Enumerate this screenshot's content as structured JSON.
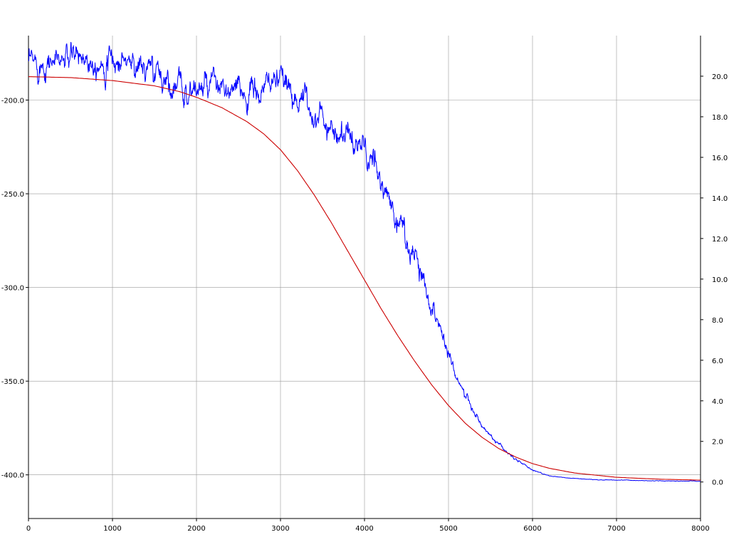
{
  "chart_data": {
    "type": "line",
    "title": "",
    "xlabel": "",
    "ylabel_left": "",
    "ylabel_right": "",
    "grid": true,
    "legend": "none",
    "xlim": [
      0,
      8000
    ],
    "ylim_left": [
      -423.3,
      -165.6
    ],
    "ylim_right": [
      -1.8,
      22.0
    ],
    "x_ticks": [
      0,
      1000,
      2000,
      3000,
      4000,
      5000,
      6000,
      7000,
      8000
    ],
    "x_tick_labels": [
      "0",
      "1000",
      "2000",
      "3000",
      "4000",
      "5000",
      "6000",
      "7000",
      "8000"
    ],
    "y_left_ticks": [
      -200,
      -250,
      -300,
      -350,
      -400
    ],
    "y_left_tick_labels": [
      "-200.0",
      "-250.0",
      "-300.0",
      "-350.0",
      "-400.0"
    ],
    "y_right_ticks": [
      0,
      2,
      4,
      6,
      8,
      10,
      12,
      14,
      16,
      18,
      20
    ],
    "y_right_tick_labels": [
      "0.0",
      "2.0",
      "4.0",
      "6.0",
      "8.0",
      "10.0",
      "12.0",
      "14.0",
      "16.0",
      "18.0",
      "20.0"
    ],
    "series": [
      {
        "axis": "right",
        "color": "#0000ff",
        "noisy": true,
        "x": [
          0,
          200,
          400,
          600,
          800,
          1000,
          1200,
          1400,
          1600,
          1800,
          2000,
          2200,
          2400,
          2600,
          2800,
          2900,
          3000,
          3200,
          3400,
          3600,
          3800,
          4000,
          4200,
          4400,
          4600,
          4800,
          5000,
          5200,
          5400,
          5600,
          5800,
          6000,
          6200,
          6400,
          6600,
          6800,
          7000,
          7200,
          7400,
          7600,
          7800,
          8000
        ],
        "y": [
          20.5,
          20.8,
          20.8,
          21.0,
          20.9,
          20.7,
          20.8,
          20.3,
          20.0,
          19.4,
          19.3,
          19.4,
          19.1,
          19.2,
          19.1,
          20.0,
          19.6,
          19.1,
          18.2,
          17.6,
          17.0,
          16.4,
          14.7,
          12.9,
          11.2,
          8.8,
          6.4,
          4.2,
          2.7,
          1.8,
          1.1,
          0.6,
          0.3,
          0.2,
          0.15,
          0.1,
          0.1,
          0.08,
          0.06,
          0.05,
          0.05,
          0.04
        ]
      },
      {
        "axis": "left",
        "color": "#cc0000",
        "noisy": false,
        "x": [
          0,
          500,
          1000,
          1500,
          1800,
          2000,
          2300,
          2600,
          2800,
          3000,
          3200,
          3400,
          3600,
          3800,
          4000,
          4200,
          4400,
          4600,
          4800,
          5000,
          5200,
          5400,
          5600,
          5800,
          6000,
          6200,
          6500,
          7000,
          7500,
          8000
        ],
        "y": [
          -187.5,
          -188.0,
          -189.6,
          -192.4,
          -195.5,
          -198.5,
          -204.0,
          -211.5,
          -218.0,
          -226.5,
          -237.5,
          -250.5,
          -265.0,
          -280.5,
          -296.0,
          -311.5,
          -326.0,
          -339.5,
          -352.0,
          -363.0,
          -372.5,
          -380.0,
          -386.0,
          -390.5,
          -394.0,
          -396.5,
          -399.0,
          -401.3,
          -402.3,
          -402.8
        ]
      }
    ]
  }
}
